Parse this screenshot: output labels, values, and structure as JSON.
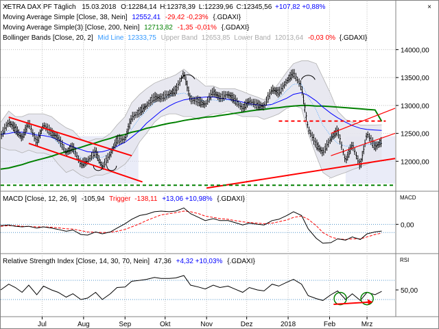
{
  "close_icon": "close-icon",
  "colors": {
    "price": "#000000",
    "ma38": "#0000ff",
    "ma200": "#008000",
    "mid": "#3399ff",
    "band": "#c8c8c8",
    "bandfill": "#e6e6ee",
    "red": "#ff0000",
    "macd": "#000000",
    "trigger": "#ff0000",
    "rsi": "#000000",
    "grid": "#bbbbbb",
    "highlight": "#d8ddf3",
    "ref": "#4a90c8"
  },
  "legend": {
    "price": {
      "name": "XETRA DAX PF Täglich",
      "date": "15.03.2018",
      "o": "O:12284,14",
      "h": "H:12378,39",
      "l": "L:12239,96",
      "c": "C:12345,56",
      "chg": "+107,82 +0,88%"
    },
    "ma38": {
      "name": "Moving Average Simple [Close, 38, Nein]",
      "value": "12552,41",
      "chg": "-29,42 -0,23%",
      "sym": "{.GDAXI}"
    },
    "ma200": {
      "name": "Moving Average Simple(3) [Close, 200, Nein]",
      "value": "12713,82",
      "chg": "-1,35 -0,01%",
      "sym": "{.GDAXI}"
    },
    "bb": {
      "name": "Bollinger Bands [Close, 20, 2]",
      "mid_label": "Mid Line",
      "mid": "12333,75",
      "upper_label": "Upper Band",
      "upper": "12653,85",
      "lower_label": "Lower Band",
      "lower": "12013,64",
      "chg": "-0,03 0%",
      "sym": "{.GDAXI}"
    },
    "macd": {
      "name": "MACD [Close, 12, 26, 9]",
      "value": "-105,94",
      "trigger_label": "Trigger",
      "trigger": "-138,11",
      "chg": "+13,06 +10,98%",
      "sym": "{.GDAXI}"
    },
    "rsi": {
      "name": "Relative Strength Index [Close, 14, 30, 70, Nein]",
      "value": "47,36",
      "chg": "+4,32 +10,03%",
      "sym": "{.GDAXI}"
    }
  },
  "chart_data": [
    {
      "type": "line",
      "panel": "price",
      "ylim": [
        11500,
        14300
      ],
      "y_ticks": [
        "14000,00",
        "13500,00",
        "13000,00",
        "12500,00",
        "12000,00"
      ],
      "y_tick_values": [
        14000,
        13500,
        13000,
        12500,
        12000
      ],
      "x_tick_labels": [
        "Jul",
        "Aug",
        "Sep",
        "Okt",
        "Nov",
        "Dez",
        "2018",
        "Feb",
        "Mrz"
      ],
      "x_tick_days": [
        18,
        49,
        80,
        110,
        141,
        171,
        202,
        233,
        261
      ],
      "day_range": [
        -13,
        282
      ],
      "days": [
        -13,
        -7,
        -2,
        3,
        8,
        14,
        19,
        25,
        30,
        36,
        41,
        47,
        52,
        58,
        63,
        69,
        74,
        80,
        85,
        91,
        96,
        102,
        107,
        113,
        118,
        124,
        129,
        135,
        140,
        146,
        151,
        157,
        162,
        168,
        173,
        179,
        184,
        190,
        195,
        201,
        206,
        212,
        217,
        223,
        228,
        234,
        239,
        245,
        250,
        256,
        261,
        267,
        272
      ],
      "close": [
        12440,
        12700,
        12580,
        12410,
        12690,
        12320,
        12650,
        12510,
        12420,
        12150,
        12250,
        11940,
        12000,
        12170,
        11890,
        12120,
        12380,
        12390,
        12780,
        12880,
        12990,
        13140,
        13130,
        13200,
        13260,
        13580,
        13100,
        13070,
        13010,
        13250,
        13130,
        13200,
        13100,
        12940,
        13080,
        13000,
        12980,
        13290,
        13220,
        13430,
        13580,
        13330,
        12580,
        12300,
        12150,
        12400,
        12550,
        12000,
        12300,
        11900,
        12500,
        12250,
        12346
      ],
      "upper": [
        12700,
        12900,
        12800,
        12800,
        12850,
        12850,
        12850,
        12800,
        12700,
        12600,
        12550,
        12400,
        12350,
        12400,
        12400,
        12500,
        12650,
        12800,
        13050,
        13200,
        13300,
        13400,
        13450,
        13500,
        13550,
        13650,
        13550,
        13450,
        13350,
        13350,
        13300,
        13300,
        13300,
        13250,
        13200,
        13150,
        13100,
        13250,
        13400,
        13600,
        13750,
        13800,
        13800,
        13750,
        13500,
        13200,
        12900,
        12750,
        12700,
        12650,
        12650,
        12650,
        12654
      ],
      "lower": [
        12250,
        12200,
        12200,
        12150,
        12200,
        12150,
        12150,
        12100,
        11950,
        11800,
        11850,
        11750,
        11700,
        11750,
        11750,
        11800,
        11850,
        11950,
        12100,
        12350,
        12500,
        12700,
        12800,
        12850,
        12850,
        12800,
        12800,
        12750,
        12800,
        12850,
        12850,
        12900,
        12850,
        12800,
        12800,
        12800,
        12750,
        12800,
        12850,
        12950,
        13000,
        12950,
        12500,
        12100,
        11800,
        11700,
        11750,
        11800,
        11850,
        11900,
        11950,
        12000,
        12014
      ],
      "mid": [
        12480,
        12550,
        12500,
        12480,
        12520,
        12490,
        12500,
        12450,
        12320,
        12200,
        12200,
        12070,
        12020,
        12070,
        12070,
        12150,
        12250,
        12370,
        12580,
        12780,
        12900,
        13050,
        13120,
        13170,
        13200,
        13220,
        13180,
        13100,
        13080,
        13100,
        13080,
        13100,
        13070,
        13020,
        13000,
        12970,
        12930,
        13020,
        13120,
        13270,
        13380,
        13380,
        13150,
        12920,
        12650,
        12450,
        12320,
        12270,
        12280,
        12270,
        12300,
        12320,
        12334
      ],
      "ma38": [
        12480,
        12500,
        12520,
        12520,
        12500,
        12470,
        12460,
        12430,
        12380,
        12310,
        12260,
        12210,
        12170,
        12160,
        12170,
        12210,
        12270,
        12340,
        12430,
        12550,
        12680,
        12800,
        12900,
        12990,
        13050,
        13100,
        13120,
        13140,
        13150,
        13150,
        13130,
        13110,
        13090,
        13060,
        13030,
        13010,
        13000,
        13020,
        13070,
        13130,
        13200,
        13230,
        13180,
        13080,
        12970,
        12860,
        12780,
        12700,
        12640,
        12590,
        12570,
        12560,
        12552
      ],
      "ma200": [
        11860,
        11880,
        11910,
        11940,
        11980,
        12020,
        12050,
        12090,
        12130,
        12170,
        12210,
        12250,
        12290,
        12330,
        12370,
        12410,
        12450,
        12480,
        12520,
        12550,
        12590,
        12620,
        12650,
        12680,
        12700,
        12730,
        12750,
        12770,
        12790,
        12800,
        12820,
        12840,
        12860,
        12880,
        12900,
        12920,
        12930,
        12950,
        12960,
        12980,
        12990,
        13000,
        13000,
        12990,
        12990,
        12980,
        12970,
        12960,
        12950,
        12940,
        12930,
        12920,
        12714
      ],
      "highlight_days": [
        [
          -13,
          90
        ],
        [
          245,
          282
        ]
      ],
      "annotations": {
        "downtrend_upper": [
          [
            -7,
            12790
          ],
          [
            85,
            12100
          ]
        ],
        "downtrend_lower": [
          [
            8,
            12320
          ],
          [
            93,
            11630
          ]
        ],
        "uptrend_low": [
          [
            -13,
            11540
          ],
          [
            272,
            12200
          ]
        ],
        "uptrend_recent": [
          [
            141,
            11520
          ],
          [
            282,
            12050
          ]
        ],
        "channel_upper": [
          [
            234,
            12500
          ],
          [
            282,
            12950
          ]
        ],
        "channel_lower": [
          [
            234,
            12100
          ],
          [
            282,
            12500
          ]
        ],
        "support": [
          [
            195,
            12720
          ],
          [
            275,
            12720
          ]
        ],
        "bottom_dashed": [
          [
            -13,
            11570
          ],
          [
            282,
            11570
          ]
        ],
        "circles": [
          [
            60,
            11870
          ],
          [
            70,
            11870
          ],
          [
            127,
            13570
          ],
          [
            217,
            13560
          ]
        ]
      }
    },
    {
      "type": "line",
      "panel": "macd",
      "y_ticks": [
        "0,00"
      ],
      "y_tick_values": [
        0
      ],
      "ylim": [
        -420,
        340
      ],
      "ref_lines": [
        0,
        -130
      ],
      "macd": [
        -20,
        -10,
        -30,
        -40,
        -30,
        -60,
        -40,
        -60,
        -80,
        -110,
        -90,
        -160,
        -170,
        -120,
        -150,
        -120,
        -60,
        10,
        80,
        140,
        160,
        200,
        210,
        200,
        210,
        260,
        170,
        110,
        60,
        90,
        60,
        60,
        30,
        -10,
        20,
        0,
        -10,
        60,
        80,
        140,
        200,
        140,
        -70,
        -220,
        -300,
        -290,
        -230,
        -250,
        -200,
        -240,
        -150,
        -120,
        -106
      ],
      "trigger": [
        -30,
        -20,
        -20,
        -30,
        -35,
        -40,
        -40,
        -45,
        -55,
        -70,
        -75,
        -100,
        -120,
        -125,
        -130,
        -125,
        -110,
        -80,
        -40,
        10,
        60,
        110,
        150,
        170,
        185,
        210,
        200,
        170,
        130,
        110,
        90,
        80,
        60,
        40,
        30,
        20,
        10,
        20,
        40,
        70,
        110,
        130,
        80,
        -20,
        -130,
        -200,
        -230,
        -240,
        -230,
        -230,
        -200,
        -160,
        -138
      ]
    },
    {
      "type": "line",
      "panel": "rsi",
      "y_ticks": [
        "50,00"
      ],
      "y_tick_values": [
        50
      ],
      "ylim": [
        0,
        100
      ],
      "ref_lines": [
        70,
        30
      ],
      "rsi": [
        50,
        62,
        55,
        45,
        60,
        40,
        58,
        50,
        45,
        35,
        42,
        30,
        33,
        45,
        30,
        42,
        55,
        56,
        68,
        70,
        72,
        76,
        74,
        74,
        75,
        80,
        60,
        56,
        52,
        60,
        55,
        58,
        52,
        45,
        55,
        50,
        48,
        62,
        58,
        66,
        72,
        62,
        38,
        32,
        28,
        40,
        48,
        30,
        42,
        28,
        45,
        40,
        47
      ],
      "annotations": {
        "circles": [
          [
            241,
            32
          ],
          [
            261,
            32
          ]
        ],
        "divergence_arrow": [
          [
            236,
            20
          ],
          [
            265,
            25
          ]
        ]
      }
    }
  ]
}
